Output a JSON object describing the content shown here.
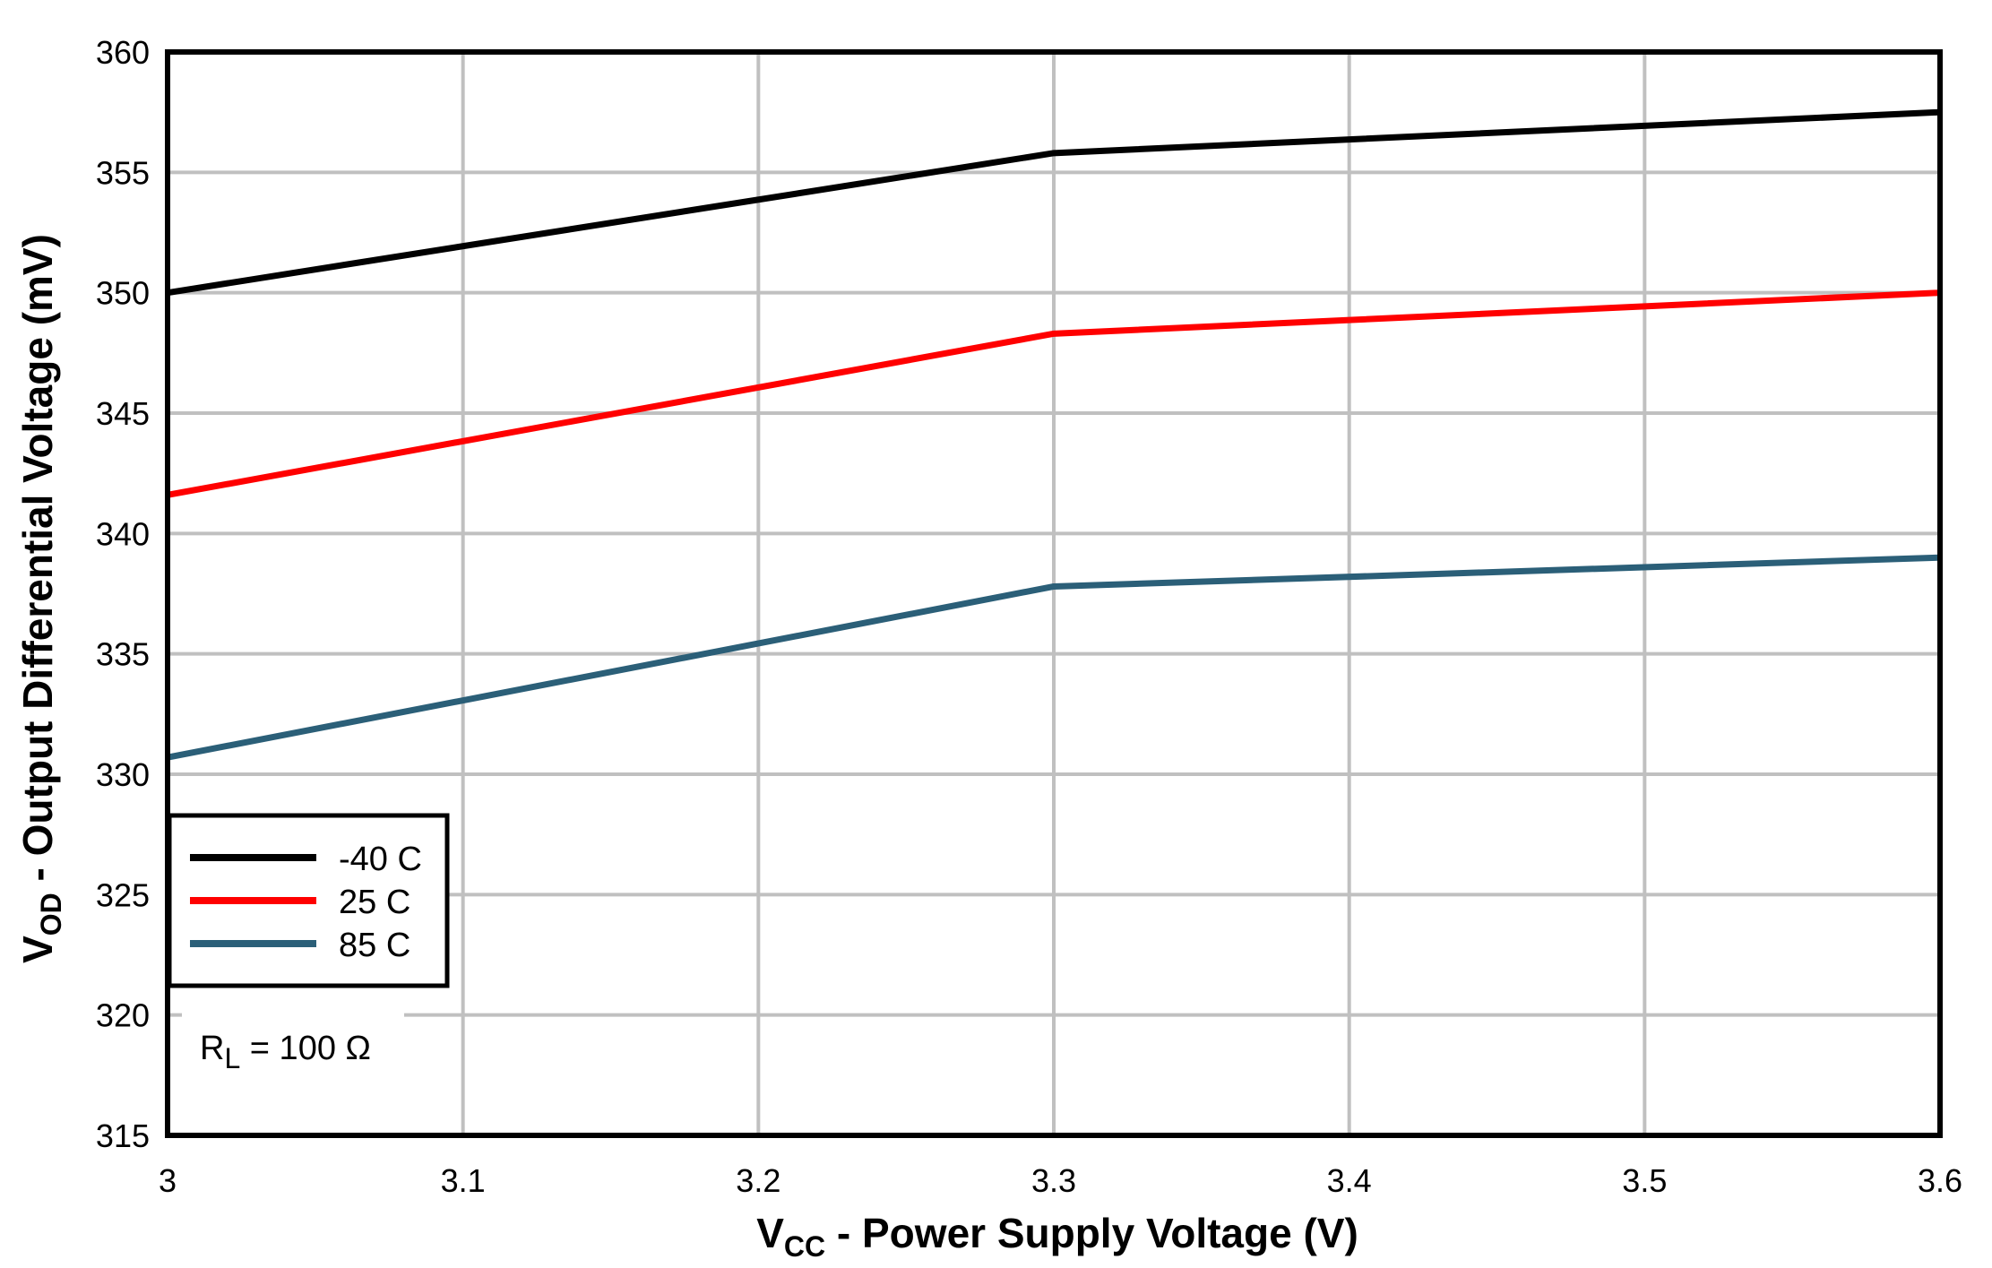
{
  "chart_data": {
    "type": "line",
    "title": "",
    "xlabel": {
      "main": "V",
      "sub": "CC",
      "rest": " - Power Supply Voltage (V)"
    },
    "ylabel": {
      "main": "V",
      "sub": "OD",
      "rest": " - Output Differential Voltage (mV)"
    },
    "xlim": [
      3,
      3.6
    ],
    "ylim": [
      315,
      360
    ],
    "xticks": [
      "3",
      "3.1",
      "3.2",
      "3.3",
      "3.4",
      "3.5",
      "3.6"
    ],
    "yticks": [
      "315",
      "320",
      "325",
      "330",
      "335",
      "340",
      "345",
      "350",
      "355",
      "360"
    ],
    "grid": true,
    "legend_position": "bottom-left",
    "x": [
      3.0,
      3.3,
      3.6
    ],
    "series": [
      {
        "name": "-40 C",
        "color": "#000000",
        "values": [
          350.0,
          355.8,
          357.5
        ]
      },
      {
        "name": "25 C",
        "color": "#ff0000",
        "values": [
          341.6,
          348.3,
          350.0
        ]
      },
      {
        "name": "85 C",
        "color": "#2b5f78",
        "values": [
          330.7,
          337.8,
          339.0
        ]
      }
    ],
    "annotation": {
      "main": "R",
      "sub": "L",
      "rest": " = 100 Ω"
    }
  }
}
